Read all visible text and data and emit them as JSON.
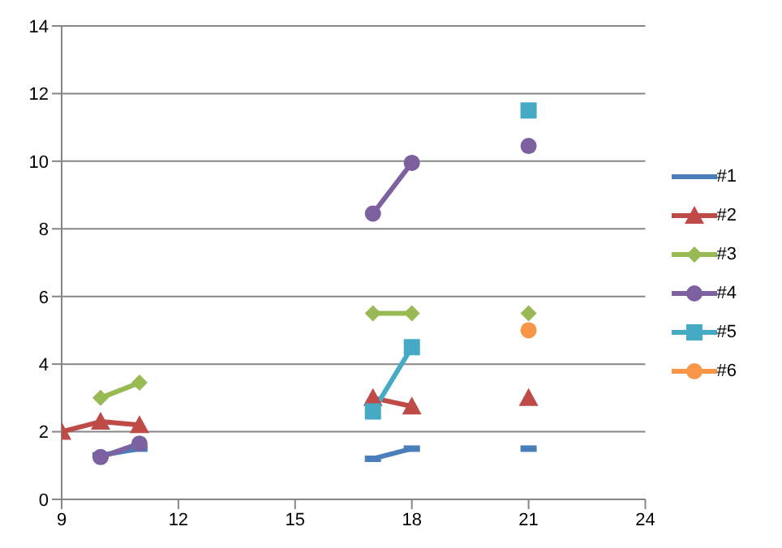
{
  "chart_data": {
    "type": "line",
    "x": [
      9,
      10,
      11,
      12,
      13,
      14,
      15,
      16,
      17,
      18,
      19,
      20,
      21
    ],
    "series": [
      {
        "name": "#1",
        "color": "#4a7ebb",
        "marker": "square",
        "values": [
          null,
          1.3,
          1.5,
          null,
          null,
          null,
          null,
          null,
          1.2,
          1.5,
          null,
          null,
          1.5
        ]
      },
      {
        "name": "#2",
        "color": "#be4b48",
        "marker": "triangle",
        "values": [
          2.0,
          2.3,
          2.2,
          null,
          null,
          null,
          null,
          null,
          3.0,
          2.75,
          null,
          null,
          3.0
        ]
      },
      {
        "name": "#3",
        "color": "#98b954",
        "marker": "diamond",
        "values": [
          null,
          3.0,
          3.45,
          null,
          null,
          null,
          null,
          null,
          5.5,
          5.5,
          null,
          null,
          5.5
        ]
      },
      {
        "name": "#4",
        "color": "#7d60a0",
        "marker": "circle",
        "values": [
          null,
          1.25,
          1.65,
          null,
          null,
          null,
          null,
          null,
          8.45,
          9.95,
          null,
          null,
          10.45
        ]
      },
      {
        "name": "#5",
        "color": "#46aac5",
        "marker": "square",
        "values": [
          null,
          null,
          null,
          null,
          null,
          null,
          null,
          null,
          2.6,
          4.5,
          null,
          null,
          11.5
        ]
      },
      {
        "name": "#6",
        "color": "#f79646",
        "marker": "circle",
        "values": [
          null,
          null,
          null,
          null,
          null,
          null,
          null,
          null,
          null,
          null,
          null,
          null,
          5.0
        ]
      }
    ],
    "xlim": [
      9,
      24
    ],
    "xticks": [
      9,
      12,
      15,
      18,
      21,
      24
    ],
    "ylim": [
      0,
      14
    ],
    "yticks": [
      0,
      2,
      4,
      6,
      8,
      10,
      12,
      14
    ],
    "grid": "y",
    "legend": "right",
    "line_style": "solid"
  }
}
